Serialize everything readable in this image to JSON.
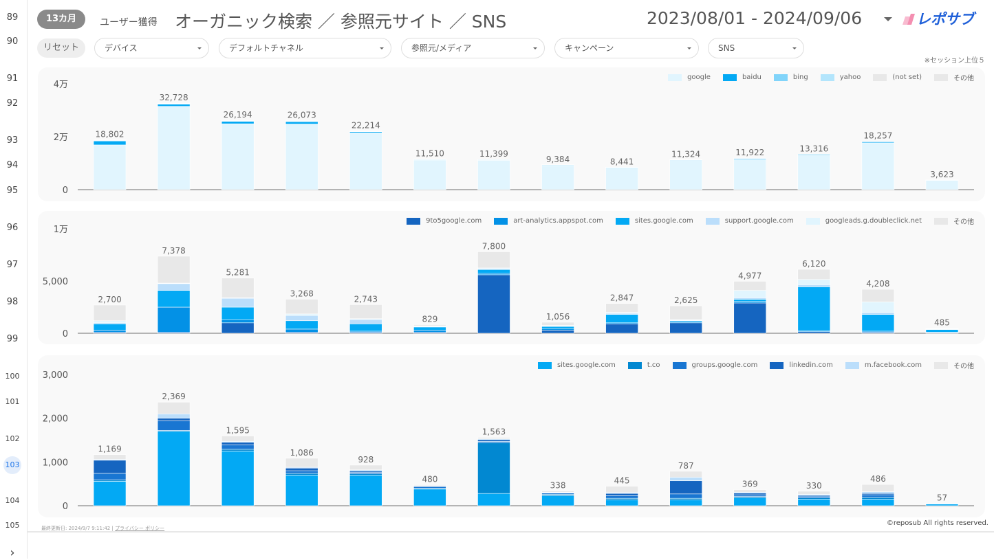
{
  "rail": {
    "rows": [
      "89",
      "90",
      "91",
      "92",
      "93",
      "94",
      "95",
      "96",
      "97",
      "98",
      "99",
      "100",
      "101",
      "102",
      "103",
      "104",
      "105"
    ],
    "active": "103",
    "expand": "›"
  },
  "header": {
    "badge": "13カ月",
    "subtitle": "ユーザー獲得",
    "title": "オーガニック検索 ／ 参照元サイト ／ SNS",
    "date_range": "2023/08/01 - 2024/09/06",
    "logo_text": "レポサブ"
  },
  "filters": {
    "reset": "リセット",
    "items": [
      "デバイス",
      "デフォルトチャネル",
      "参照元/メディア",
      "キャンペーン",
      "SNS"
    ],
    "note": "※セッション上位５"
  },
  "colors": {
    "axis": "#9e9e9e",
    "label": "#666666"
  },
  "chart_data": [
    {
      "type": "bar",
      "stacked": true,
      "ylim": [
        0,
        40000
      ],
      "yticks": [
        {
          "v": 0,
          "label": "0"
        },
        {
          "v": 20000,
          "label": "2万"
        },
        {
          "v": 40000,
          "label": "4万"
        }
      ],
      "legend": "top-right",
      "series": [
        {
          "name": "google",
          "color": "#e1f5fe",
          "values": [
            16900,
            31500,
            24900,
            24800,
            21500,
            11200,
            11100,
            9100,
            8150,
            11000,
            11500,
            12900,
            17700,
            3480
          ]
        },
        {
          "name": "baidu",
          "color": "#03a9f4",
          "values": [
            1500,
            800,
            900,
            900,
            400,
            200,
            200,
            200,
            200,
            200,
            300,
            300,
            400,
            100
          ]
        },
        {
          "name": "bing",
          "color": "#81d4fa",
          "values": [
            200,
            200,
            200,
            200,
            150,
            60,
            60,
            50,
            50,
            80,
            70,
            70,
            100,
            30
          ]
        },
        {
          "name": "yahoo",
          "color": "#b3e5fc",
          "values": [
            100,
            100,
            100,
            100,
            100,
            30,
            30,
            20,
            30,
            30,
            40,
            30,
            40,
            10
          ]
        },
        {
          "name": "(not set)",
          "color": "#e8e8e8",
          "values": [
            50,
            64,
            47,
            36,
            32,
            10,
            5,
            7,
            6,
            7,
            6,
            8,
            9,
            2
          ]
        },
        {
          "name": "その他",
          "color": "#e8e8e8",
          "values": [
            52,
            64,
            47,
            37,
            32,
            10,
            4,
            7,
            5,
            7,
            6,
            8,
            8,
            1
          ]
        }
      ],
      "totals": [
        "18,802",
        "32,728",
        "26,194",
        "26,073",
        "22,214",
        "11,510",
        "11,399",
        "9,384",
        "8,441",
        "11,324",
        "11,922",
        "13,316",
        "18,257",
        "3,623"
      ]
    },
    {
      "type": "bar",
      "stacked": true,
      "ylim": [
        0,
        10000
      ],
      "yticks": [
        {
          "v": 0,
          "label": "0"
        },
        {
          "v": 5000,
          "label": "5,000"
        },
        {
          "v": 10000,
          "label": "1万"
        }
      ],
      "legend": "top-right",
      "series": [
        {
          "name": "9to5google.com",
          "color": "#1565c0",
          "values": [
            100,
            100,
            1000,
            100,
            100,
            100,
            5600,
            300,
            900,
            1000,
            2900,
            150,
            100,
            50
          ]
        },
        {
          "name": "art-analytics.appspot.com",
          "color": "#0391e6",
          "values": [
            200,
            2400,
            300,
            300,
            100,
            200,
            150,
            150,
            100,
            100,
            150,
            100,
            100,
            50
          ]
        },
        {
          "name": "sites.google.com",
          "color": "#03a9f4",
          "values": [
            600,
            1600,
            1200,
            800,
            700,
            300,
            350,
            200,
            800,
            100,
            200,
            4200,
            1600,
            250
          ]
        },
        {
          "name": "support.google.com",
          "color": "#bbdefb",
          "values": [
            100,
            650,
            850,
            500,
            400,
            50,
            100,
            50,
            100,
            50,
            150,
            200,
            200,
            50
          ]
        },
        {
          "name": "googleads.g.doubleclick.net",
          "color": "#e1f5fe",
          "values": [
            200,
            50,
            50,
            150,
            100,
            50,
            50,
            50,
            100,
            50,
            700,
            500,
            1000,
            35
          ]
        },
        {
          "name": "その他",
          "color": "#e8e8e8",
          "values": [
            1500,
            2578,
            1881,
            1418,
            1343,
            129,
            1550,
            306,
            847,
            1325,
            877,
            970,
            1208,
            50
          ]
        }
      ],
      "totals": [
        "2,700",
        "7,378",
        "5,281",
        "3,268",
        "2,743",
        "829",
        "7,800",
        "1,056",
        "2,847",
        "2,625",
        "4,977",
        "6,120",
        "4,208",
        "485"
      ]
    },
    {
      "type": "bar",
      "stacked": true,
      "ylim": [
        0,
        3000
      ],
      "yticks": [
        {
          "v": 0,
          "label": "0"
        },
        {
          "v": 1000,
          "label": "1,000"
        },
        {
          "v": 2000,
          "label": "2,000"
        },
        {
          "v": 3000,
          "label": "3,000"
        }
      ],
      "legend": "top-right",
      "series": [
        {
          "name": "sites.google.com",
          "color": "#03a9f4",
          "values": [
            560,
            1700,
            1250,
            700,
            700,
            380,
            280,
            230,
            130,
            130,
            180,
            150,
            150,
            40
          ]
        },
        {
          "name": "t.co",
          "color": "#0288d1",
          "values": [
            30,
            20,
            40,
            40,
            30,
            20,
            1160,
            30,
            40,
            40,
            30,
            30,
            40,
            5
          ]
        },
        {
          "name": "groups.google.com",
          "color": "#1976d2",
          "values": [
            150,
            220,
            100,
            60,
            30,
            30,
            30,
            30,
            60,
            100,
            40,
            40,
            60,
            5
          ]
        },
        {
          "name": "linkedin.com",
          "color": "#1565c0",
          "values": [
            300,
            60,
            60,
            60,
            30,
            20,
            40,
            10,
            50,
            300,
            40,
            20,
            30,
            2
          ]
        },
        {
          "name": "m.facebook.com",
          "color": "#bbdefb",
          "values": [
            20,
            100,
            20,
            20,
            30,
            10,
            20,
            10,
            20,
            80,
            20,
            20,
            40,
            2
          ]
        },
        {
          "name": "その他",
          "color": "#e8e8e8",
          "values": [
            109,
            269,
            125,
            206,
            108,
            20,
            33,
            28,
            145,
            137,
            59,
            70,
            166,
            3
          ]
        }
      ],
      "totals": [
        "1,169",
        "2,369",
        "1,595",
        "1,086",
        "928",
        "480",
        "1,563",
        "338",
        "445",
        "787",
        "369",
        "330",
        "486",
        "57"
      ]
    }
  ],
  "footer": {
    "updated": "最終更新日: 2024/9/7 9:11:42",
    "sep": "|",
    "privacy": "プライバシー ポリシー",
    "copyright": "©reposub All rights reserved."
  }
}
